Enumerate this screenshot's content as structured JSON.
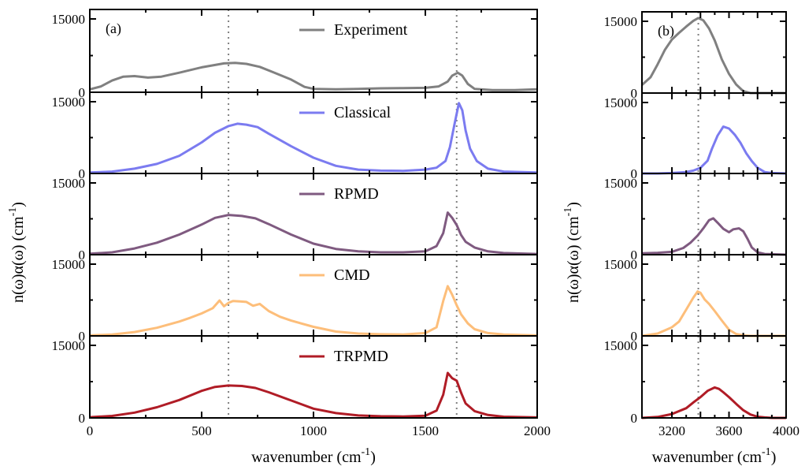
{
  "colors": {
    "Experiment": "#808080",
    "Classical": "#7b7bf0",
    "RPMD": "#7f5a80",
    "CMD": "#fdbe7a",
    "TRPMD": "#b01c26",
    "guide": "#808080"
  },
  "chart_data": [
    {
      "type": "line",
      "panel_label": "(a)",
      "xlabel": "wavenumber (cm",
      "xlabel_sup": "-1",
      "xlabel_end": ")",
      "ylabel": "n(ω)α(ω) (cm",
      "ylabel_sup": "-1",
      "ylabel_end": ")",
      "xlim": [
        0,
        2000
      ],
      "ylim": [
        0,
        15000
      ],
      "xticks": [
        0,
        500,
        1000,
        1500,
        2000
      ],
      "yticks": [
        0,
        15000
      ],
      "guide_lines_x": [
        620,
        1640
      ],
      "series": [
        {
          "name": "Experiment",
          "x": [
            0,
            50,
            100,
            150,
            200,
            260,
            320,
            400,
            500,
            600,
            650,
            700,
            760,
            820,
            900,
            960,
            1000,
            1100,
            1200,
            1300,
            1400,
            1500,
            1560,
            1600,
            1620,
            1645,
            1665,
            1690,
            1720,
            1800,
            1900,
            2000
          ],
          "y": [
            600,
            1200,
            2400,
            3200,
            3300,
            3000,
            3200,
            4000,
            5100,
            5900,
            6000,
            5800,
            5200,
            4100,
            2600,
            1100,
            700,
            600,
            700,
            800,
            850,
            900,
            1200,
            2200,
            3400,
            4000,
            3400,
            1700,
            700,
            450,
            450,
            600
          ]
        },
        {
          "name": "Classical",
          "x": [
            0,
            100,
            200,
            300,
            400,
            500,
            560,
            620,
            660,
            700,
            750,
            800,
            900,
            1000,
            1100,
            1200,
            1300,
            1400,
            1500,
            1550,
            1590,
            1610,
            1630,
            1650,
            1665,
            1680,
            1700,
            1730,
            1780,
            1850,
            2000
          ],
          "y": [
            200,
            400,
            1000,
            2000,
            3700,
            6500,
            8500,
            9900,
            10400,
            10200,
            9700,
            8300,
            5700,
            3300,
            1600,
            800,
            600,
            550,
            800,
            1200,
            2600,
            5500,
            10200,
            14700,
            13200,
            9000,
            5200,
            2600,
            1000,
            400,
            200
          ]
        },
        {
          "name": "RPMD",
          "x": [
            0,
            100,
            200,
            300,
            400,
            500,
            560,
            620,
            680,
            740,
            800,
            900,
            1000,
            1100,
            1200,
            1300,
            1400,
            1500,
            1550,
            1580,
            1600,
            1620,
            1640,
            1660,
            1680,
            1720,
            1780,
            1850,
            2000
          ],
          "y": [
            200,
            500,
            1300,
            2500,
            4200,
            6300,
            7700,
            8300,
            8100,
            7600,
            6400,
            4200,
            2300,
            1200,
            700,
            500,
            500,
            700,
            1800,
            4500,
            8800,
            7700,
            6200,
            4100,
            2700,
            1500,
            700,
            350,
            150
          ]
        },
        {
          "name": "CMD",
          "x": [
            0,
            100,
            200,
            300,
            400,
            450,
            500,
            550,
            580,
            600,
            620,
            640,
            670,
            700,
            730,
            760,
            800,
            850,
            900,
            1000,
            1100,
            1200,
            1300,
            1400,
            1500,
            1550,
            1580,
            1600,
            1620,
            1640,
            1660,
            1690,
            1720,
            1780,
            1850,
            2000
          ],
          "y": [
            100,
            300,
            800,
            1700,
            3000,
            3800,
            4700,
            5800,
            7400,
            6200,
            6900,
            7300,
            7200,
            7100,
            6300,
            6700,
            5200,
            4000,
            3200,
            1900,
            900,
            500,
            350,
            300,
            600,
            1800,
            7300,
            10400,
            8600,
            6400,
            4500,
            2600,
            1400,
            600,
            300,
            100
          ]
        },
        {
          "name": "TRPMD",
          "x": [
            0,
            100,
            200,
            300,
            400,
            500,
            560,
            620,
            680,
            740,
            800,
            900,
            1000,
            1100,
            1200,
            1300,
            1400,
            1500,
            1550,
            1580,
            1600,
            1620,
            1640,
            1660,
            1680,
            1720,
            1780,
            1850,
            2000
          ],
          "y": [
            150,
            400,
            1100,
            2200,
            3700,
            5600,
            6400,
            6700,
            6600,
            6200,
            5300,
            3600,
            1900,
            1000,
            500,
            350,
            300,
            450,
            1500,
            4800,
            9300,
            8200,
            7700,
            5200,
            3000,
            1400,
            600,
            250,
            100
          ]
        }
      ]
    },
    {
      "type": "line",
      "panel_label": "(b)",
      "xlabel": "wavenumber (cm",
      "xlabel_sup": "-1",
      "xlabel_end": ")",
      "ylabel": "n(ω)α(ω) (cm",
      "ylabel_sup": "-1",
      "ylabel_end": ")",
      "xlim": [
        2990,
        4000
      ],
      "ylim": [
        0,
        15000
      ],
      "xticks": [
        3200,
        3400,
        3600,
        3800,
        4000
      ],
      "xtick_labels": [
        "3200",
        "",
        "3600",
        "",
        "4000"
      ],
      "yticks": [
        0,
        15000
      ],
      "guide_lines_x": [
        3385
      ],
      "series": [
        {
          "name": "Experiment",
          "x": [
            2990,
            3050,
            3100,
            3150,
            3200,
            3250,
            3300,
            3350,
            3385,
            3420,
            3460,
            3500,
            3550,
            3600,
            3650,
            3700,
            3750,
            3800,
            3900,
            4000
          ],
          "y": [
            1700,
            3300,
            6000,
            9000,
            11200,
            12600,
            13900,
            15100,
            15700,
            15200,
            13500,
            11000,
            7000,
            4000,
            1800,
            400,
            0,
            0,
            0,
            0
          ]
        },
        {
          "name": "Classical",
          "x": [
            2990,
            3100,
            3200,
            3300,
            3350,
            3400,
            3450,
            3480,
            3520,
            3560,
            3600,
            3640,
            3680,
            3720,
            3760,
            3800,
            3850,
            3900,
            4000
          ],
          "y": [
            0,
            0,
            100,
            300,
            600,
            1200,
            2700,
            5200,
            8000,
            9900,
            9500,
            8200,
            6500,
            4300,
            2600,
            1200,
            300,
            100,
            0
          ]
        },
        {
          "name": "RPMD",
          "x": [
            2990,
            3100,
            3200,
            3280,
            3330,
            3380,
            3420,
            3460,
            3490,
            3520,
            3560,
            3600,
            3630,
            3670,
            3700,
            3730,
            3760,
            3800,
            3850,
            4000
          ],
          "y": [
            300,
            400,
            600,
            1400,
            2500,
            4000,
            5500,
            7200,
            7600,
            6700,
            5400,
            4700,
            5300,
            5500,
            4900,
            3300,
            1500,
            500,
            150,
            0
          ]
        },
        {
          "name": "CMD",
          "x": [
            2990,
            3100,
            3200,
            3250,
            3300,
            3350,
            3380,
            3400,
            3430,
            3460,
            3500,
            3550,
            3600,
            3650,
            3700,
            3750,
            3800,
            4000
          ],
          "y": [
            0,
            500,
            1800,
            3000,
            5500,
            8000,
            9300,
            9000,
            7600,
            6700,
            5200,
            3200,
            1300,
            400,
            100,
            0,
            0,
            0
          ]
        },
        {
          "name": "TRPMD",
          "x": [
            2990,
            3100,
            3200,
            3300,
            3350,
            3400,
            3450,
            3500,
            3530,
            3560,
            3600,
            3650,
            3700,
            3750,
            3800,
            3850,
            3900,
            4000
          ],
          "y": [
            0,
            200,
            800,
            2000,
            3200,
            4300,
            5600,
            6300,
            6000,
            5300,
            4300,
            2900,
            1600,
            700,
            250,
            100,
            0,
            0
          ]
        }
      ]
    }
  ]
}
